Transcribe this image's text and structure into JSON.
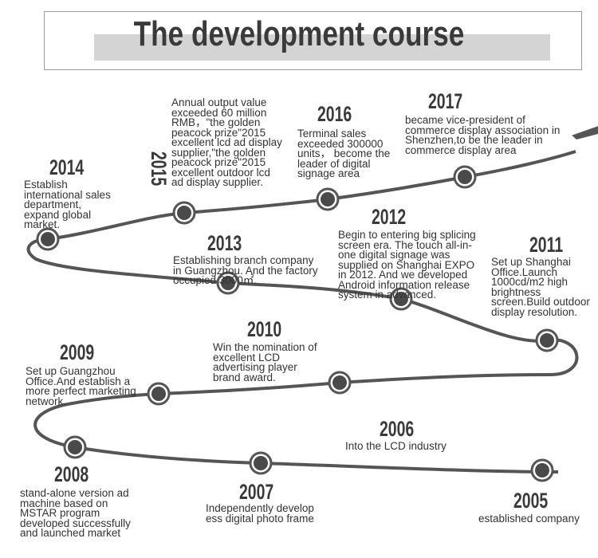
{
  "title": "The development course",
  "events": [
    {
      "year": "2014",
      "text": "Establish international sales department, expand global market."
    },
    {
      "year": "2015",
      "text": "Annual output value exceeded 60 million RMB，\"the golden peacock prize\"2015 excellent lcd ad display supplier,\"the golden peacock prize\"2015 excellent outdoor lcd ad display supplier."
    },
    {
      "year": "2016",
      "text": "Terminal sales exceeded 300000 units， become the leader of digital signage  area"
    },
    {
      "year": "2017",
      "text": "became vice-president of commerce display association in Shenzhen,to be the leader in commerce display area"
    },
    {
      "year": "2013",
      "text": "Establishing branch company in Guangzhou. And the factory occupied 3000㎡."
    },
    {
      "year": "2012",
      "text": "Begin to entering big splicing screen era. The touch all-in-one digital signage was supplied on Shanghai EXPO in 2012. And we developed Android information release system in advanced."
    },
    {
      "year": "2011",
      "text": "Set up Shanghai Office.Launch 1000cd/m2 high brightness screen.Build outdoor display resolution."
    },
    {
      "year": "2010",
      "text": "Win the nomination of excellent LCD advertising player brand award."
    },
    {
      "year": "2009",
      "text": "Set up Guangzhou Office.And establish a more perfect marketing network."
    },
    {
      "year": "2008",
      "text": "stand-alone version ad machine based on MSTAR program developed successfully and launched  market"
    },
    {
      "year": "2007",
      "text": "Independently develop ess digital photo frame"
    },
    {
      "year": "2006",
      "text": "Into the LCD industry"
    },
    {
      "year": "2005",
      "text": "established company"
    }
  ],
  "colors": {
    "line": "#555555",
    "node": "#4a4a4a",
    "title_bar": "#d4d4d4"
  },
  "icons": {
    "end": "airplane-icon"
  }
}
